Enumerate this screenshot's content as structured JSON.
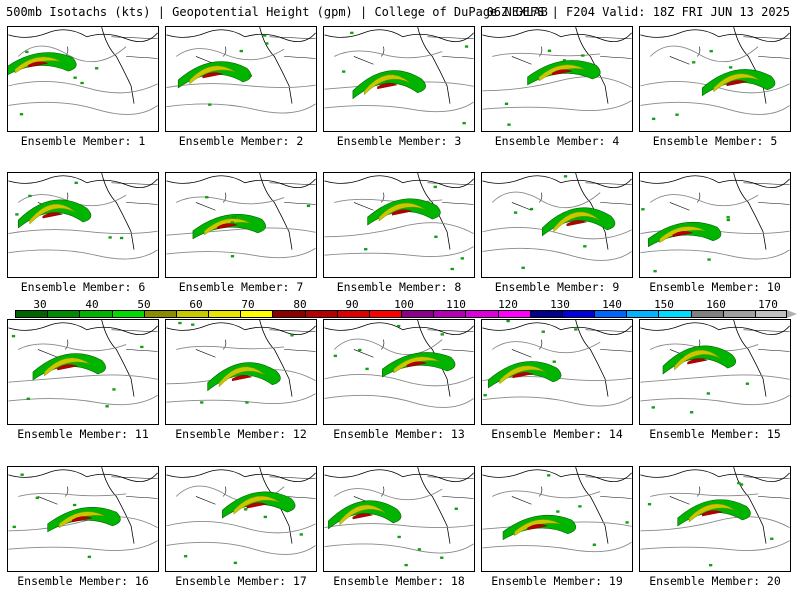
{
  "header": {
    "left": "500mb Isotachs (kts) | Geopotential Height (gpm) | College of DuPage NEXLAB",
    "right": "06Z GEFS | F204 Valid: 18Z FRI JUN 13 2025"
  },
  "panels": [
    {
      "label": "Ensemble Member: 1"
    },
    {
      "label": "Ensemble Member: 2"
    },
    {
      "label": "Ensemble Member: 3"
    },
    {
      "label": "Ensemble Member: 4"
    },
    {
      "label": "Ensemble Member: 5"
    },
    {
      "label": "Ensemble Member: 6"
    },
    {
      "label": "Ensemble Member: 7"
    },
    {
      "label": "Ensemble Member: 8"
    },
    {
      "label": "Ensemble Member: 9"
    },
    {
      "label": "Ensemble Member: 10"
    },
    {
      "label": "Ensemble Member: 11"
    },
    {
      "label": "Ensemble Member: 12"
    },
    {
      "label": "Ensemble Member: 13"
    },
    {
      "label": "Ensemble Member: 14"
    },
    {
      "label": "Ensemble Member: 15"
    },
    {
      "label": "Ensemble Member: 16"
    },
    {
      "label": "Ensemble Member: 17"
    },
    {
      "label": "Ensemble Member: 18"
    },
    {
      "label": "Ensemble Member: 19"
    },
    {
      "label": "Ensemble Member: 20"
    }
  ],
  "colorbar": {
    "ticks": [
      "30",
      "40",
      "50",
      "60",
      "70",
      "80",
      "90",
      "100",
      "110",
      "120",
      "130",
      "140",
      "150",
      "160",
      "170"
    ],
    "colors": [
      "#006400",
      "#008c00",
      "#00b400",
      "#00dc00",
      "#8c8c00",
      "#c8c800",
      "#e6e600",
      "#ffff00",
      "#8c0000",
      "#b40000",
      "#dc0000",
      "#ff0000",
      "#8c008c",
      "#b400b4",
      "#dc00dc",
      "#ff00ff",
      "#00008c",
      "#0000dc",
      "#0064ff",
      "#00b4ff",
      "#00dcff",
      "#808080",
      "#a0a0a0",
      "#c0c0c0"
    ]
  }
}
